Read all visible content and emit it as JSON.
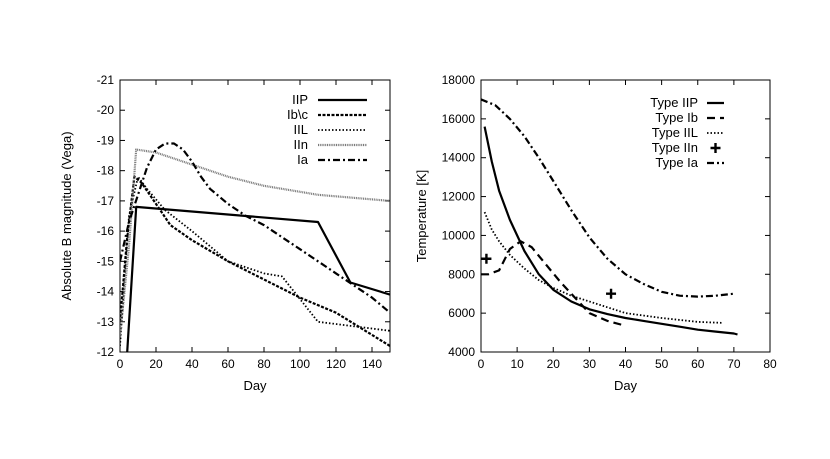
{
  "chart_data": [
    {
      "type": "line",
      "xlabel": "Day",
      "ylabel": "Absolute B magnitude (Vega)",
      "xlim": [
        0,
        150
      ],
      "ylim": [
        -12,
        -21
      ],
      "y_inverted": true,
      "xticks": [
        "0",
        "20",
        "40",
        "60",
        "80",
        "100",
        "120",
        "140"
      ],
      "yticks": [
        "-12",
        "-13",
        "-14",
        "-15",
        "-16",
        "-17",
        "-18",
        "-19",
        "-20",
        "-21"
      ],
      "legend_position": "top-right",
      "series": [
        {
          "name": "IIP",
          "style": "solid",
          "width": 2.2,
          "color": "#000000",
          "x": [
            4,
            9,
            110,
            128,
            150
          ],
          "y": [
            -12,
            -16.8,
            -16.3,
            -14.3,
            -13.9
          ]
        },
        {
          "name": "Ib\\c",
          "style": "dense-dash",
          "width": 2.2,
          "color": "#000000",
          "x": [
            0,
            4,
            8,
            12,
            20,
            28,
            40,
            60,
            80,
            100,
            120,
            150
          ],
          "y": [
            -13,
            -15.8,
            -17.8,
            -17.6,
            -16.9,
            -16.2,
            -15.7,
            -15.0,
            -14.4,
            -13.8,
            -13.3,
            -12.2
          ]
        },
        {
          "name": "IIL",
          "style": "dotted",
          "width": 1.8,
          "color": "#000000",
          "x": [
            0,
            5,
            10,
            15,
            25,
            40,
            60,
            80,
            90,
            110,
            150
          ],
          "y": [
            -12.2,
            -16.5,
            -17.8,
            -17.4,
            -16.7,
            -16.0,
            -15.0,
            -14.6,
            -14.5,
            -13.0,
            -12.7
          ]
        },
        {
          "name": "IIn",
          "style": "fine-dot",
          "width": 2.2,
          "color": "#7a7a7a",
          "x": [
            0,
            5,
            9,
            20,
            40,
            60,
            80,
            110,
            150
          ],
          "y": [
            -12.5,
            -15.5,
            -18.7,
            -18.6,
            -18.2,
            -17.8,
            -17.5,
            -17.2,
            -17.0
          ]
        },
        {
          "name": "Ia",
          "style": "dash-dot",
          "width": 2.2,
          "color": "#000000",
          "x": [
            0,
            5,
            10,
            15,
            20,
            25,
            30,
            35,
            40,
            45,
            50,
            60,
            70,
            80,
            90,
            100,
            110,
            120,
            130,
            140,
            150
          ],
          "y": [
            -15.0,
            -16.3,
            -17.2,
            -18.1,
            -18.7,
            -18.9,
            -18.9,
            -18.7,
            -18.3,
            -17.8,
            -17.4,
            -16.9,
            -16.5,
            -16.2,
            -15.8,
            -15.4,
            -15.0,
            -14.6,
            -14.2,
            -13.8,
            -13.3
          ]
        }
      ]
    },
    {
      "type": "line",
      "xlabel": "Day",
      "ylabel": "Temperature  [K]",
      "xlim": [
        0,
        80
      ],
      "ylim": [
        4000,
        18000
      ],
      "xticks": [
        "0",
        "10",
        "20",
        "30",
        "40",
        "50",
        "60",
        "70",
        "80"
      ],
      "yticks": [
        "4000",
        "6000",
        "8000",
        "10000",
        "12000",
        "14000",
        "16000",
        "18000"
      ],
      "legend_position": "top-right",
      "series": [
        {
          "name": "Type IIP",
          "style": "solid",
          "width": 2.2,
          "color": "#000000",
          "x": [
            1,
            3,
            5,
            8,
            12,
            16,
            20,
            25,
            30,
            35,
            40,
            45,
            50,
            55,
            60,
            65,
            70,
            71
          ],
          "y": [
            15600,
            13800,
            12300,
            10800,
            9200,
            8000,
            7200,
            6600,
            6200,
            5950,
            5750,
            5600,
            5450,
            5300,
            5150,
            5050,
            4950,
            4900
          ]
        },
        {
          "name": "Type Ib",
          "style": "dashed",
          "width": 2.2,
          "color": "#000000",
          "x": [
            0,
            2,
            5,
            8,
            11,
            14,
            18,
            22,
            26,
            30,
            35,
            40
          ],
          "y": [
            8000,
            8000,
            8200,
            9300,
            9700,
            9400,
            8500,
            7600,
            6800,
            6000,
            5600,
            5350
          ]
        },
        {
          "name": "Type IIL",
          "style": "dotted",
          "width": 1.8,
          "color": "#000000",
          "x": [
            1,
            3,
            5,
            8,
            12,
            16,
            20,
            25,
            30,
            35,
            40,
            50,
            60,
            67
          ],
          "y": [
            11200,
            10300,
            9700,
            9000,
            8300,
            7700,
            7300,
            6900,
            6600,
            6300,
            6000,
            5750,
            5550,
            5500
          ]
        },
        {
          "name": "Type IIn",
          "style": "marker-plus",
          "width": 2.2,
          "color": "#000000",
          "x": [
            1.5,
            36
          ],
          "y": [
            8800,
            7000
          ]
        },
        {
          "name": "Type Ia",
          "style": "dash-dot",
          "width": 2.2,
          "color": "#000000",
          "x": [
            0,
            4,
            8,
            12,
            16,
            20,
            25,
            30,
            35,
            40,
            45,
            50,
            55,
            60,
            65,
            70
          ],
          "y": [
            17000,
            16700,
            16000,
            15100,
            14000,
            12800,
            11300,
            9900,
            8800,
            8000,
            7500,
            7100,
            6900,
            6850,
            6900,
            7000
          ]
        }
      ]
    }
  ]
}
